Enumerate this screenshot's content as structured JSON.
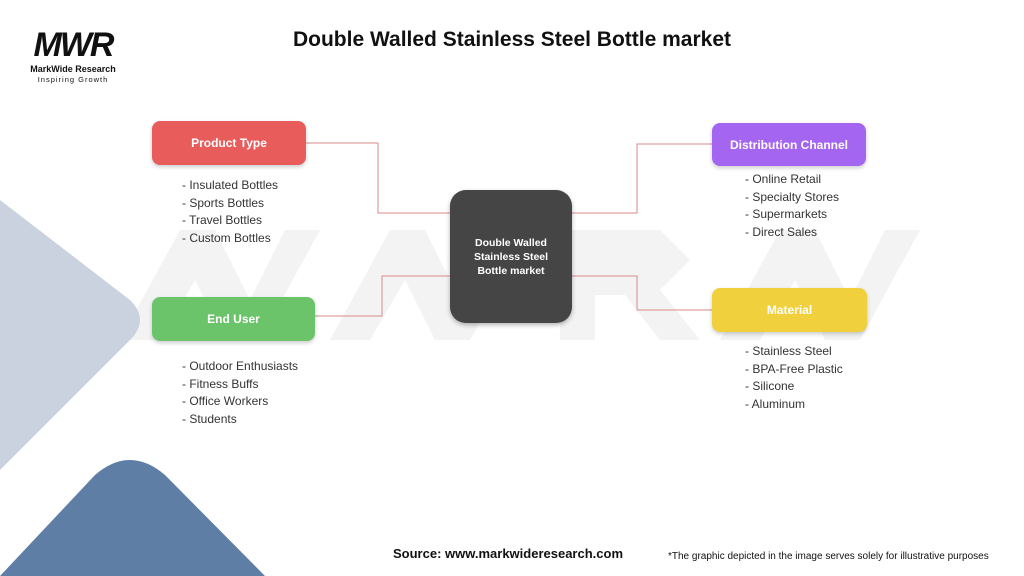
{
  "title": "Double Walled Stainless Steel Bottle market",
  "logo": {
    "mark": "MWR",
    "name": "MarkWide Research",
    "tagline": "Inspiring Growth"
  },
  "center": {
    "label": "Double Walled Stainless Steel Bottle market"
  },
  "segments": [
    {
      "label": "Product Type",
      "color": "#e85c5c",
      "items": [
        "- Insulated Bottles",
        "- Sports Bottles",
        "- Travel Bottles",
        "- Custom Bottles"
      ]
    },
    {
      "label": "End User",
      "color": "#6cc46a",
      "items": [
        "- Outdoor Enthusiasts",
        "- Fitness Buffs",
        "- Office Workers",
        "- Students"
      ]
    },
    {
      "label": "Distribution Channel",
      "color": "#a466f0",
      "items": [
        "- Online Retail",
        "- Specialty Stores",
        "- Supermarkets",
        "- Direct Sales"
      ]
    },
    {
      "label": "Material",
      "color": "#f0d03c",
      "items": [
        "- Stainless Steel",
        "- BPA-Free Plastic",
        "- Silicone",
        "- Aluminum"
      ]
    }
  ],
  "footer": {
    "source": "Source: www.markwideresearch.com",
    "disclaimer": "*The graphic depicted in the image serves solely for illustrative purposes"
  }
}
